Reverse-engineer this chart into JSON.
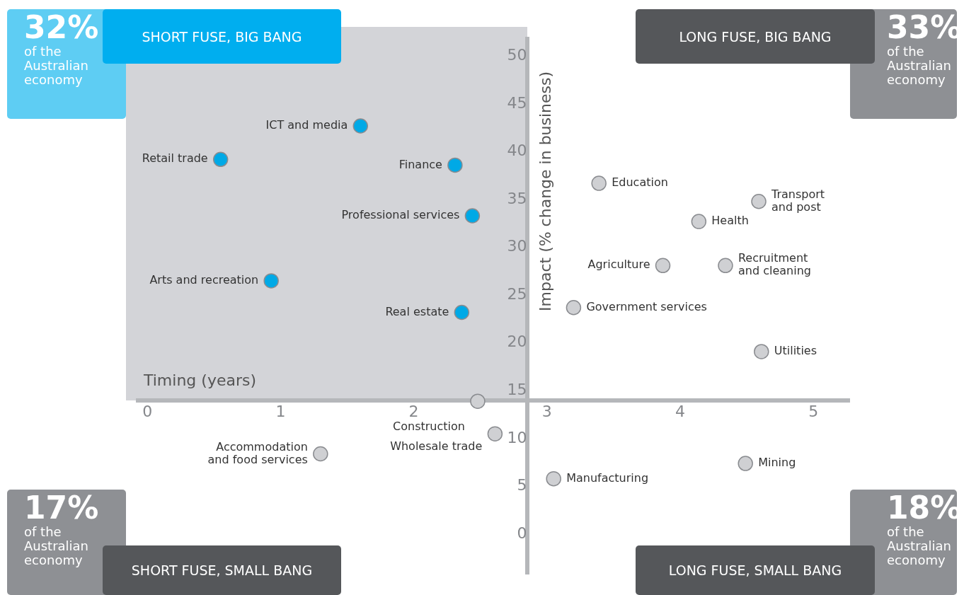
{
  "chart_data": {
    "type": "scatter",
    "xlabel": "Timing (years)",
    "ylabel": "Impact (% change in business)",
    "xlim": [
      -0.07,
      5.27
    ],
    "ylim": [
      -4.2,
      51.8
    ],
    "xticks": [
      0,
      1,
      2,
      3,
      4,
      5
    ],
    "yticks": [
      0,
      5,
      10,
      15,
      20,
      25,
      30,
      35,
      40,
      45,
      50
    ],
    "grid": false,
    "legend": false,
    "marker": "circle",
    "series": [
      {
        "color": "#00a9e6",
        "x": [
          1.6,
          0.55,
          2.31,
          2.44,
          0.93,
          2.36
        ],
        "values": [
          42.7,
          39.2,
          38.6,
          33.3,
          26.5,
          23.2
        ],
        "value_labels": [
          "ICT and media",
          "Retail trade",
          "Finance",
          "Professional services",
          "Arts and recreation",
          "Real estate"
        ]
      },
      {
        "color": "#cfd0d3",
        "x": [
          3.39,
          4.59,
          4.14,
          3.87,
          4.34,
          3.2,
          4.61,
          2.48,
          2.61,
          1.3,
          3.05,
          4.49
        ],
        "values": [
          36.7,
          34.8,
          32.7,
          28.1,
          28.1,
          23.7,
          19.1,
          13.9,
          10.5,
          8.4,
          5.8,
          7.4
        ],
        "value_labels": [
          "Education",
          "Transport\nand post",
          "Health",
          "Agriculture",
          "Recruitment\nand cleaning",
          "Government services",
          "Utilities",
          "Construction",
          "Wholesale trade",
          "Accommodation\nand food services",
          "Manufacturing",
          "Mining"
        ]
      }
    ],
    "annotations": [
      "SHORT FUSE, BIG BANG",
      "32%",
      "of the\nAustralian\neconomy",
      "LONG FUSE, BIG BANG",
      "33%",
      "of the\nAustralian\neconomy",
      "SHORT FUSE, SMALL BANG",
      "17%",
      "of the\nAustralian\neconomy",
      "LONG FUSE, SMALL BANG",
      "18%",
      "of the\nAustralian\neconomy"
    ]
  }
}
